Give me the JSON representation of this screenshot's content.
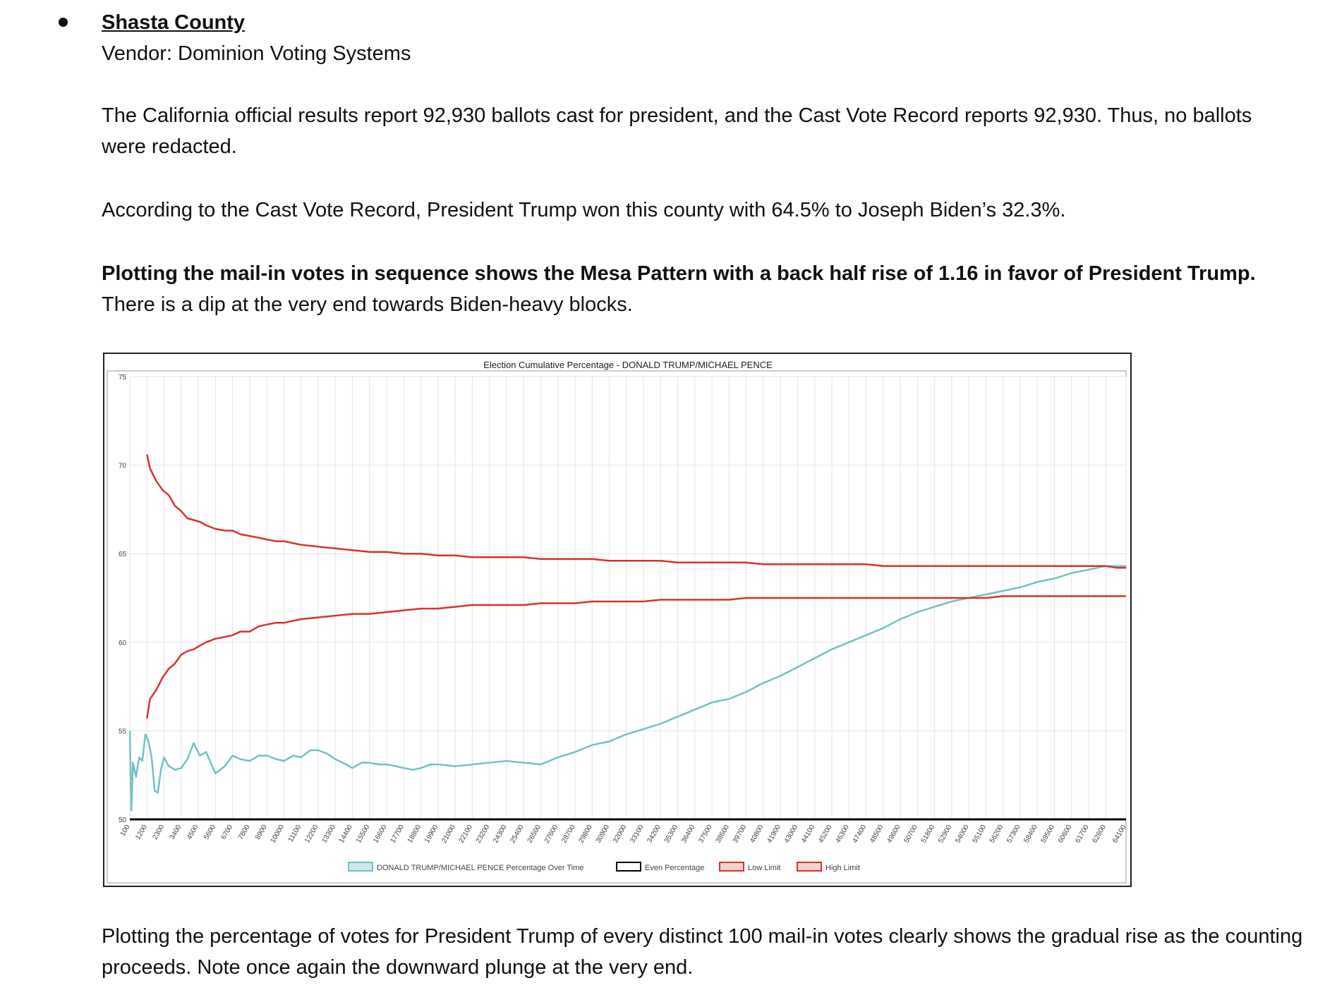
{
  "document": {
    "heading": "Shasta County",
    "vendor": "Vendor: Dominion Voting Systems",
    "paragraph_ballots": "The California official results report 92,930 ballots cast for president, and the Cast Vote Record reports 92,930. Thus, no ballots were redacted.",
    "paragraph_result": "According to the Cast Vote Record, President Trump won this county with 64.5% to Joseph Biden’s 32.3%.",
    "paragraph_mesa_bold": "Plotting the mail-in votes in sequence shows the Mesa Pattern with a back half rise of 1.16 in favor of President Trump.",
    "paragraph_mesa_rest": "There is a dip at the very end towards Biden-heavy blocks.",
    "paragraph_closing": "Plotting the percentage of votes for President Trump of every distinct 100 mail-in votes clearly shows the gradual rise as the counting proceeds. Note once again the downward plunge at the very end."
  },
  "colors": {
    "trump": "#72c1c4",
    "even": "#000000",
    "limit": "#d9322b",
    "grid": "#e4e4e4",
    "text": "#444444"
  },
  "chart_data": {
    "type": "line",
    "title": "Election Cumulative Percentage - DONALD TRUMP/MICHAEL PENCE",
    "xlabel": "",
    "ylabel": "",
    "ylim": [
      50,
      75
    ],
    "xlim": [
      100,
      64100
    ],
    "yticks": [
      "75",
      "70",
      "65",
      "60",
      "55",
      "50"
    ],
    "xticks": [
      "100",
      "1200",
      "2300",
      "3400",
      "4500",
      "5600",
      "6700",
      "7800",
      "8900",
      "10000",
      "11100",
      "12200",
      "13300",
      "14400",
      "15500",
      "16600",
      "17700",
      "18800",
      "19900",
      "21000",
      "22100",
      "23200",
      "24300",
      "25400",
      "26500",
      "27600",
      "28700",
      "29800",
      "30900",
      "32000",
      "33100",
      "34200",
      "35300",
      "36400",
      "37500",
      "38600",
      "39700",
      "40800",
      "41900",
      "43000",
      "44100",
      "45200",
      "46300",
      "47400",
      "48500",
      "49600",
      "50700",
      "51800",
      "52900",
      "54000",
      "55100",
      "56200",
      "57300",
      "58400",
      "59500",
      "60600",
      "61700",
      "62800",
      "64100"
    ],
    "legend_position": "bottom-center",
    "legend": [
      "DONALD TRUMP/MICHAEL PENCE Percentage Over Time",
      "Even Percentage",
      "Low Limit",
      "High Limit"
    ],
    "series": [
      {
        "name": "DONALD TRUMP/MICHAEL PENCE Percentage Over Time",
        "x": [
          100,
          200,
          300,
          500,
          700,
          900,
          1100,
          1300,
          1500,
          1700,
          1900,
          2100,
          2300,
          2600,
          3000,
          3400,
          3800,
          4200,
          4600,
          5000,
          5600,
          6200,
          6700,
          7200,
          7800,
          8400,
          8900,
          9500,
          10000,
          10600,
          11100,
          11700,
          12200,
          12800,
          13300,
          14000,
          14400,
          15000,
          15500,
          16100,
          16600,
          17200,
          17700,
          18300,
          18800,
          19400,
          19900,
          21000,
          22100,
          23200,
          24300,
          25400,
          26500,
          27600,
          28700,
          29800,
          30900,
          32000,
          33100,
          34200,
          35300,
          36400,
          37500,
          38600,
          39700,
          40800,
          41900,
          43000,
          44100,
          45200,
          46300,
          47400,
          48500,
          49600,
          50700,
          51800,
          52900,
          54000,
          55100,
          56200,
          57300,
          58400,
          59500,
          60600,
          61700,
          62800,
          63500,
          64100
        ],
        "values": [
          55.0,
          50.5,
          53.2,
          52.4,
          53.5,
          53.3,
          54.8,
          54.4,
          53.5,
          51.6,
          51.5,
          52.8,
          53.5,
          53.0,
          52.8,
          52.9,
          53.4,
          54.3,
          53.6,
          53.8,
          52.6,
          53.0,
          53.6,
          53.4,
          53.3,
          53.6,
          53.6,
          53.4,
          53.3,
          53.6,
          53.5,
          53.9,
          53.9,
          53.7,
          53.4,
          53.1,
          52.9,
          53.2,
          53.2,
          53.1,
          53.1,
          53.0,
          52.9,
          52.8,
          52.9,
          53.1,
          53.1,
          53.0,
          53.1,
          53.2,
          53.3,
          53.2,
          53.1,
          53.5,
          53.8,
          54.2,
          54.4,
          54.8,
          55.1,
          55.4,
          55.8,
          56.2,
          56.6,
          56.8,
          57.2,
          57.7,
          58.1,
          58.6,
          59.1,
          59.6,
          60.0,
          60.4,
          60.8,
          61.3,
          61.7,
          62.0,
          62.3,
          62.5,
          62.7,
          62.9,
          63.1,
          63.4,
          63.6,
          63.9,
          64.1,
          64.3,
          64.3,
          64.3
        ]
      },
      {
        "name": "Even Percentage",
        "x": [
          100,
          64100
        ],
        "values": [
          50,
          50
        ]
      },
      {
        "name": "Low Limit",
        "x": [
          1200,
          1400,
          1800,
          2200,
          2600,
          3000,
          3400,
          3800,
          4200,
          4600,
          5000,
          5600,
          6200,
          6700,
          7200,
          7800,
          8400,
          8900,
          9500,
          10000,
          11100,
          12200,
          13300,
          14400,
          15500,
          16600,
          17700,
          18800,
          19900,
          21000,
          22100,
          23200,
          24300,
          25400,
          26500,
          27600,
          28700,
          29800,
          30900,
          32000,
          33100,
          34200,
          35300,
          36400,
          37500,
          38600,
          39700,
          40800,
          41900,
          43000,
          44100,
          45200,
          46300,
          47400,
          48500,
          49600,
          50700,
          51800,
          52900,
          54000,
          55100,
          56200,
          57300,
          58400,
          59500,
          60600,
          61700,
          62800,
          63500,
          64100
        ],
        "values": [
          55.7,
          56.8,
          57.3,
          58.0,
          58.5,
          58.8,
          59.3,
          59.5,
          59.6,
          59.8,
          60.0,
          60.2,
          60.3,
          60.4,
          60.6,
          60.6,
          60.9,
          61.0,
          61.1,
          61.1,
          61.3,
          61.4,
          61.5,
          61.6,
          61.6,
          61.7,
          61.8,
          61.9,
          61.9,
          62.0,
          62.1,
          62.1,
          62.1,
          62.1,
          62.2,
          62.2,
          62.2,
          62.3,
          62.3,
          62.3,
          62.3,
          62.4,
          62.4,
          62.4,
          62.4,
          62.4,
          62.5,
          62.5,
          62.5,
          62.5,
          62.5,
          62.5,
          62.5,
          62.5,
          62.5,
          62.5,
          62.5,
          62.5,
          62.5,
          62.5,
          62.5,
          62.6,
          62.6,
          62.6,
          62.6,
          62.6,
          62.6,
          62.6,
          62.6,
          62.6
        ]
      },
      {
        "name": "High Limit",
        "x": [
          1200,
          1400,
          1800,
          2200,
          2600,
          3000,
          3400,
          3800,
          4200,
          4600,
          5000,
          5600,
          6200,
          6700,
          7200,
          7800,
          8400,
          8900,
          9500,
          10000,
          11100,
          12200,
          13300,
          14400,
          15500,
          16600,
          17700,
          18800,
          19900,
          21000,
          22100,
          23200,
          24300,
          25400,
          26500,
          27600,
          28700,
          29800,
          30900,
          32000,
          33100,
          34200,
          35300,
          36400,
          37500,
          38600,
          39700,
          40800,
          41900,
          43000,
          44100,
          45200,
          46300,
          47400,
          48500,
          49600,
          50700,
          51800,
          52900,
          54000,
          55100,
          56200,
          57300,
          58400,
          59500,
          60600,
          61700,
          62800,
          63500,
          64100
        ],
        "values": [
          70.6,
          69.8,
          69.1,
          68.6,
          68.3,
          67.7,
          67.4,
          67.0,
          66.9,
          66.8,
          66.6,
          66.4,
          66.3,
          66.3,
          66.1,
          66.0,
          65.9,
          65.8,
          65.7,
          65.7,
          65.5,
          65.4,
          65.3,
          65.2,
          65.1,
          65.1,
          65.0,
          65.0,
          64.9,
          64.9,
          64.8,
          64.8,
          64.8,
          64.8,
          64.7,
          64.7,
          64.7,
          64.7,
          64.6,
          64.6,
          64.6,
          64.6,
          64.5,
          64.5,
          64.5,
          64.5,
          64.5,
          64.4,
          64.4,
          64.4,
          64.4,
          64.4,
          64.4,
          64.4,
          64.3,
          64.3,
          64.3,
          64.3,
          64.3,
          64.3,
          64.3,
          64.3,
          64.3,
          64.3,
          64.3,
          64.3,
          64.3,
          64.3,
          64.2,
          64.2
        ]
      }
    ]
  }
}
